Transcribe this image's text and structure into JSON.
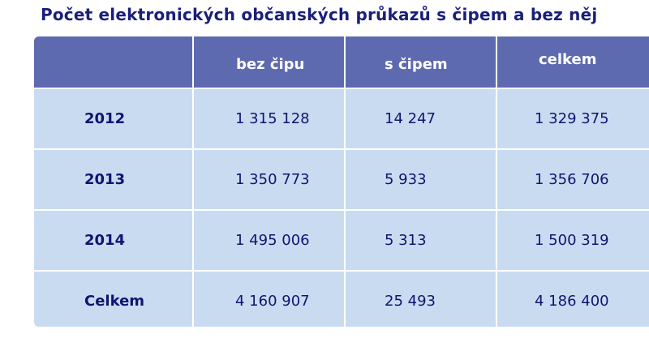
{
  "title": "Počet elektronických občanských průkazů s čipem a bez něj",
  "table": {
    "columns": [
      "",
      "bez čipu",
      "s čipem",
      "celkem"
    ],
    "rows": [
      {
        "label": "2012",
        "bez_cipu": "1 315 128",
        "s_cipem": "14 247",
        "celkem": "1 329 375"
      },
      {
        "label": "2013",
        "bez_cipu": "1 350 773",
        "s_cipem": "5 933",
        "celkem": "1 356 706"
      },
      {
        "label": "2014",
        "bez_cipu": "1 495 006",
        "s_cipem": "5 313",
        "celkem": "1 500 319"
      },
      {
        "label": "Celkem",
        "bez_cipu": "4 160 907",
        "s_cipem": "25 493",
        "celkem": "4 186 400"
      }
    ]
  },
  "colors": {
    "title": "#1a1f7a",
    "header_bg": "#5e6ab0",
    "header_text": "#ffffff",
    "cell_bg": "#c9dbf0",
    "cell_text": "#0d1670",
    "grid": "#ffffff"
  }
}
